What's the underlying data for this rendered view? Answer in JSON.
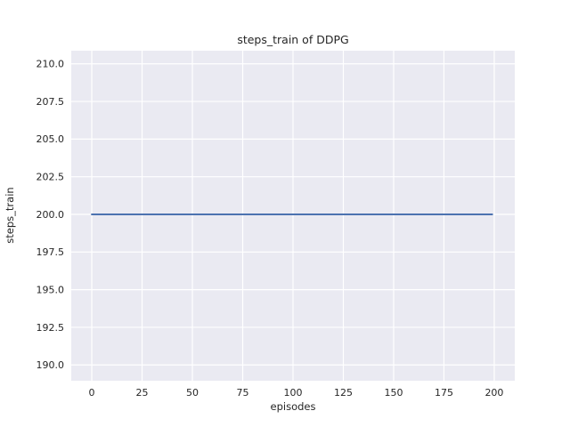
{
  "chart": {
    "title": "steps_train of DDPG",
    "xlabel": "episodes",
    "ylabel": "steps_train"
  },
  "chart_data": {
    "type": "line",
    "title": "steps_train of DDPG",
    "xlabel": "episodes",
    "ylabel": "steps_train",
    "x": [
      0,
      199
    ],
    "series": [
      {
        "name": "steps_train",
        "values": [
          200,
          200
        ],
        "color": "#4c72b0"
      }
    ],
    "xticks": [
      0,
      25,
      50,
      75,
      100,
      125,
      150,
      175,
      200
    ],
    "yticks": [
      190.0,
      192.5,
      195.0,
      197.5,
      200.0,
      202.5,
      205.0,
      207.5,
      210.0
    ],
    "xlim": [
      -10.2,
      210.2
    ],
    "ylim": [
      188.95,
      210.87
    ],
    "grid": true,
    "legend": "none",
    "colors": {
      "plot_background": "#eaeaf2",
      "grid": "#ffffff",
      "text": "#262626",
      "line": "#4c72b0",
      "figure_background": "#ffffff"
    }
  }
}
